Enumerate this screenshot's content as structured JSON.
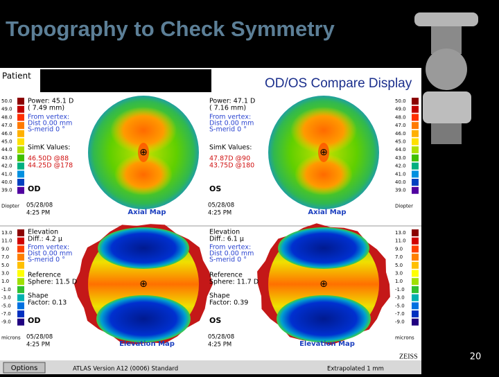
{
  "slide": {
    "title": "Topography to Check Symmetry",
    "page_number": "20"
  },
  "screen": {
    "patient_label": "Patient",
    "display_title": "OD/OS Compare Display",
    "axial_scale": {
      "left": [
        "50.0",
        "49.0",
        "48.0",
        "47.0",
        "46.0",
        "45.0",
        "44.0",
        "43.0",
        "42.0",
        "41.0",
        "40.0",
        "39.0"
      ],
      "right": [
        "50.0",
        "49.0",
        "48.0",
        "47.0",
        "46.0",
        "45.0",
        "44.0",
        "43.0",
        "42.0",
        "41.0",
        "40.0",
        "39.0"
      ],
      "unit_left": "Diopter",
      "unit_right": "Diopter"
    },
    "elevation_scale": {
      "left": [
        "13.0",
        "11.0",
        "9.0",
        "7.0",
        "5.0",
        "3.0",
        "1.0",
        "-1.0",
        "-3.0",
        "-5.0",
        "-7.0",
        "-9.0"
      ],
      "right": [
        "13.0",
        "11.0",
        "9.0",
        "7.0",
        "5.0",
        "3.0",
        "1.0",
        "-1.0",
        "-3.0",
        "-5.0",
        "-7.0",
        "-9.0"
      ],
      "unit_left": "microns",
      "unit_right": "microns"
    },
    "panels": [
      {
        "kind": "axial",
        "lines": [
          "Power: 45.1 D",
          "( 7.49 mm)",
          "From vertex:",
          "Dist 0.00 mm",
          "S-merid 0 °",
          "SimK Values:",
          "46.50D @88",
          "44.25D @178"
        ],
        "eye": "OD",
        "date": "05/28/08",
        "time": "4:25 PM",
        "map_label": "Axial Map"
      },
      {
        "kind": "axial",
        "lines": [
          "Power: 47.1 D",
          "( 7.16 mm)",
          "From vertex:",
          "Dist 0.00 mm",
          "S-merid 0 °",
          "SimK Values:",
          "47.87D @90",
          "43.75D @180"
        ],
        "eye": "OS",
        "date": "05/28/08",
        "time": "4:25 PM",
        "map_label": "Axial Map"
      },
      {
        "kind": "elevation",
        "lines": [
          "Elevation",
          "Diff.: 4.2 µ",
          "From vertex:",
          "Dist 0.00 mm",
          "S-merid 0 °",
          "Reference",
          "Sphere: 11.5 D",
          "Shape",
          "Factor: 0.13"
        ],
        "eye": "OD",
        "date": "05/28/08",
        "time": "4:25 PM",
        "map_label": "Elevation Map"
      },
      {
        "kind": "elevation",
        "lines": [
          "Elevation",
          "Diff.: 6.1 µ",
          "From vertex:",
          "Dist 0.00 mm",
          "S-merid 0 °",
          "Reference",
          "Sphere: 11.7 D",
          "Shape",
          "Factor: 0.39"
        ],
        "eye": "OS",
        "date": "05/28/08",
        "time": "4:25 PM",
        "map_label": "Elevation Map"
      }
    ],
    "footer": {
      "button": "Options",
      "version": "ATLAS Version A12 (0006) Standard",
      "extrapolated": "Extrapolated 1 mm",
      "brand": "ZEISS"
    }
  }
}
